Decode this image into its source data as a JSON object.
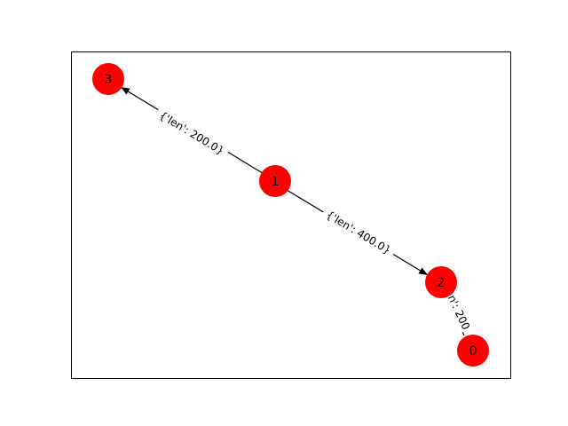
{
  "graph": {
    "directed": true,
    "node_color": "#ff0000",
    "edge_color": "#000000",
    "nodes": [
      {
        "id": "3",
        "label": "3"
      },
      {
        "id": "1",
        "label": "1"
      },
      {
        "id": "2",
        "label": "2"
      },
      {
        "id": "0",
        "label": "0"
      }
    ],
    "edges": [
      {
        "source": "1",
        "target": "3",
        "label": "{'len': 200.0}"
      },
      {
        "source": "1",
        "target": "2",
        "label": "{'len': 400.0}"
      },
      {
        "source": "2",
        "target": "0",
        "label": "n': 200"
      }
    ]
  }
}
